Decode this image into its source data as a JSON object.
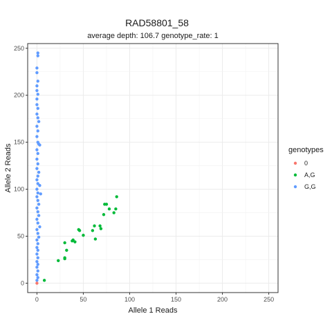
{
  "chart_data": {
    "type": "scatter",
    "title": "RAD58801_58",
    "subtitle": "average depth:  106.7  genotype_rate:  1",
    "xlabel": "Allele 1 Reads",
    "ylabel": "Allele 2 Reads",
    "xlim": [
      -10,
      260
    ],
    "ylim": [
      -10,
      255
    ],
    "xticks": [
      0,
      50,
      100,
      150,
      200,
      250
    ],
    "yticks": [
      0,
      50,
      100,
      150,
      200,
      250
    ],
    "grid": true,
    "legend_title": "genotypes",
    "legend_position": "right",
    "series": [
      {
        "name": "0",
        "color": "#F8766D",
        "points": [
          [
            0,
            0
          ]
        ]
      },
      {
        "name": "A,G",
        "color": "#00BA38",
        "points": [
          [
            8,
            3
          ],
          [
            23,
            24
          ],
          [
            30,
            26
          ],
          [
            30,
            27
          ],
          [
            30,
            43
          ],
          [
            32,
            35
          ],
          [
            38,
            45
          ],
          [
            39,
            46
          ],
          [
            41,
            44
          ],
          [
            45,
            57
          ],
          [
            46,
            56
          ],
          [
            50,
            51
          ],
          [
            60,
            56
          ],
          [
            62,
            61
          ],
          [
            63,
            47
          ],
          [
            68,
            61
          ],
          [
            69,
            58
          ],
          [
            72,
            73
          ],
          [
            73,
            84
          ],
          [
            75,
            84
          ],
          [
            78,
            79
          ],
          [
            83,
            75
          ],
          [
            85,
            79
          ],
          [
            86,
            92
          ]
        ]
      },
      {
        "name": "G,G",
        "color": "#619CFF",
        "points": [
          [
            1,
            245
          ],
          [
            1,
            242
          ],
          [
            0,
            229
          ],
          [
            0,
            224
          ],
          [
            1,
            215
          ],
          [
            0,
            210
          ],
          [
            0,
            205
          ],
          [
            1,
            201
          ],
          [
            0,
            196
          ],
          [
            0,
            190
          ],
          [
            1,
            186
          ],
          [
            0,
            180
          ],
          [
            1,
            176
          ],
          [
            2,
            172
          ],
          [
            0,
            167
          ],
          [
            1,
            162
          ],
          [
            0,
            156
          ],
          [
            1,
            150
          ],
          [
            2,
            148
          ],
          [
            3,
            147
          ],
          [
            0,
            142
          ],
          [
            1,
            138
          ],
          [
            0,
            132
          ],
          [
            1,
            127
          ],
          [
            0,
            122
          ],
          [
            2,
            118
          ],
          [
            1,
            114
          ],
          [
            0,
            110
          ],
          [
            1,
            106
          ],
          [
            3,
            104
          ],
          [
            0,
            100
          ],
          [
            1,
            96
          ],
          [
            4,
            95
          ],
          [
            0,
            92
          ],
          [
            1,
            88
          ],
          [
            2,
            84
          ],
          [
            0,
            80
          ],
          [
            1,
            76
          ],
          [
            2,
            72
          ],
          [
            0,
            68
          ],
          [
            1,
            64
          ],
          [
            3,
            60
          ],
          [
            0,
            57
          ],
          [
            1,
            53
          ],
          [
            2,
            49
          ],
          [
            0,
            46
          ],
          [
            1,
            42
          ],
          [
            0,
            38
          ],
          [
            1,
            35
          ],
          [
            0,
            31
          ],
          [
            1,
            27
          ],
          [
            0,
            23
          ],
          [
            1,
            20
          ],
          [
            0,
            17
          ],
          [
            1,
            13
          ],
          [
            0,
            9
          ],
          [
            1,
            6
          ],
          [
            0,
            3
          ]
        ]
      }
    ]
  }
}
